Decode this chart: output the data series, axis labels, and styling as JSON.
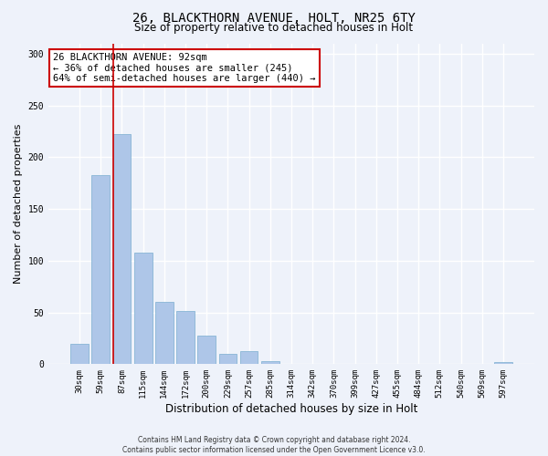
{
  "title": "26, BLACKTHORN AVENUE, HOLT, NR25 6TY",
  "subtitle": "Size of property relative to detached houses in Holt",
  "xlabel": "Distribution of detached houses by size in Holt",
  "ylabel": "Number of detached properties",
  "bin_labels": [
    "30sqm",
    "59sqm",
    "87sqm",
    "115sqm",
    "144sqm",
    "172sqm",
    "200sqm",
    "229sqm",
    "257sqm",
    "285sqm",
    "314sqm",
    "342sqm",
    "370sqm",
    "399sqm",
    "427sqm",
    "455sqm",
    "484sqm",
    "512sqm",
    "540sqm",
    "569sqm",
    "597sqm"
  ],
  "bar_values": [
    20,
    183,
    222,
    108,
    60,
    51,
    28,
    10,
    13,
    3,
    0,
    0,
    0,
    0,
    0,
    0,
    0,
    0,
    0,
    0,
    2
  ],
  "bar_color": "#aec6e8",
  "bar_edgecolor": "#7aaed0",
  "vline_x_index": 2,
  "vline_color": "#cc0000",
  "annotation_text": "26 BLACKTHORN AVENUE: 92sqm\n← 36% of detached houses are smaller (245)\n64% of semi-detached houses are larger (440) →",
  "annotation_box_color": "#ffffff",
  "annotation_box_edgecolor": "#cc0000",
  "ylim": [
    0,
    310
  ],
  "yticks": [
    0,
    50,
    100,
    150,
    200,
    250,
    300
  ],
  "background_color": "#eef2fa",
  "grid_color": "#ffffff",
  "title_fontsize": 10,
  "subtitle_fontsize": 8.5,
  "ylabel_fontsize": 8,
  "xlabel_fontsize": 8.5,
  "tick_fontsize": 6.5,
  "footer_text": "Contains HM Land Registry data © Crown copyright and database right 2024.\nContains public sector information licensed under the Open Government Licence v3.0."
}
